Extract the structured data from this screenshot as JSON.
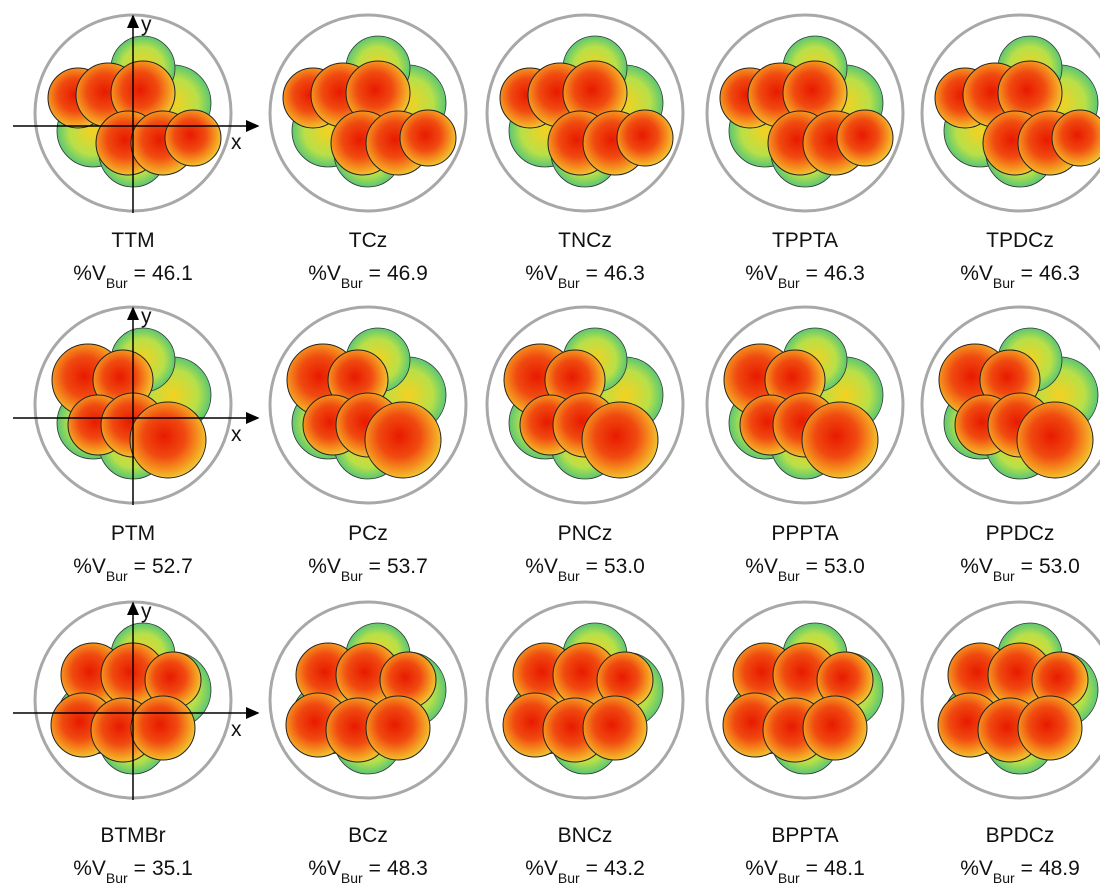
{
  "axes": {
    "x": "x",
    "y": "y"
  },
  "label": {
    "main": "%V",
    "sub": "Bur",
    "sep": "="
  },
  "rows": [
    [
      {
        "name": "TTM",
        "value": "46.1"
      },
      {
        "name": "TCz",
        "value": "46.9"
      },
      {
        "name": "TNCz",
        "value": "46.3"
      },
      {
        "name": "TPPTA",
        "value": "46.3"
      },
      {
        "name": "TPDCz",
        "value": "46.3"
      }
    ],
    [
      {
        "name": "PTM",
        "value": "52.7"
      },
      {
        "name": "PCz",
        "value": "53.7"
      },
      {
        "name": "PNCz",
        "value": "53.0"
      },
      {
        "name": "PPPTA",
        "value": "53.0"
      },
      {
        "name": "PPDCz",
        "value": "53.0"
      }
    ],
    [
      {
        "name": "BTMBr",
        "value": "35.1"
      },
      {
        "name": "BCz",
        "value": "48.3"
      },
      {
        "name": "BNCz",
        "value": "43.2"
      },
      {
        "name": "BPPTA",
        "value": "48.1"
      },
      {
        "name": "BPDCz",
        "value": "48.9"
      }
    ]
  ]
}
